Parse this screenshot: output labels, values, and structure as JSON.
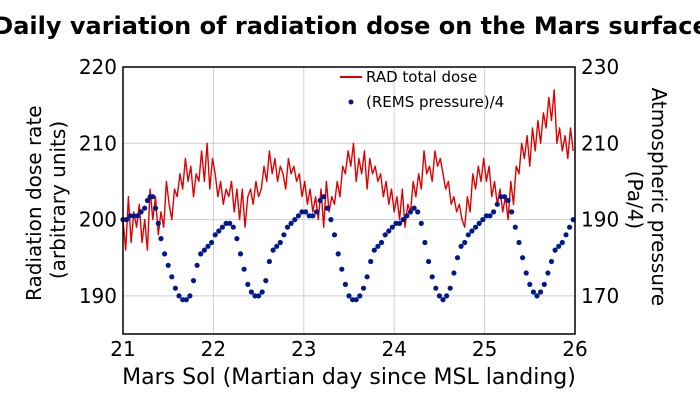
{
  "chart_data": {
    "type": "line",
    "title": "Daily variation of radiation dose on the Mars surface",
    "xlabel": "Mars Sol (Martian day since MSL landing)",
    "ylabel": "Radiation dose rate (arbitrary units)",
    "ylabel_lines": [
      "Radiation dose rate",
      "(arbitrary units)"
    ],
    "y2label": "Atmospheric pressure (Pa/4)",
    "y2label_lines": [
      "Atmospheric pressure",
      "(Pa/4)"
    ],
    "xlim": [
      21,
      26
    ],
    "ylim": [
      185,
      220
    ],
    "y2lim": [
      160,
      230
    ],
    "x_ticks": [
      "21",
      "22",
      "23",
      "24",
      "25",
      "26"
    ],
    "y_ticks": [
      "190",
      "200",
      "210",
      "220"
    ],
    "y2_ticks": [
      "170",
      "190",
      "210",
      "230"
    ],
    "grid": true,
    "legend": "top-right",
    "series": [
      {
        "name": "RAD total dose",
        "axis": "left",
        "style": "line",
        "color": "#e00000",
        "x": [
          21.0,
          21.03,
          21.06,
          21.09,
          21.12,
          21.15,
          21.18,
          21.21,
          21.24,
          21.27,
          21.3,
          21.33,
          21.36,
          21.39,
          21.42,
          21.45,
          21.48,
          21.51,
          21.54,
          21.57,
          21.6,
          21.63,
          21.66,
          21.69,
          21.72,
          21.75,
          21.78,
          21.81,
          21.84,
          21.87,
          21.9,
          21.93,
          21.96,
          21.99,
          22.02,
          22.05,
          22.08,
          22.11,
          22.14,
          22.17,
          22.2,
          22.23,
          22.26,
          22.29,
          22.32,
          22.35,
          22.38,
          22.41,
          22.44,
          22.47,
          22.5,
          22.53,
          22.56,
          22.59,
          22.62,
          22.65,
          22.68,
          22.71,
          22.74,
          22.77,
          22.8,
          22.83,
          22.86,
          22.89,
          22.92,
          22.95,
          22.98,
          23.01,
          23.04,
          23.07,
          23.1,
          23.13,
          23.16,
          23.19,
          23.22,
          23.25,
          23.28,
          23.31,
          23.34,
          23.37,
          23.4,
          23.43,
          23.46,
          23.49,
          23.52,
          23.55,
          23.58,
          23.61,
          23.64,
          23.67,
          23.7,
          23.73,
          23.76,
          23.79,
          23.82,
          23.85,
          23.88,
          23.91,
          23.94,
          23.97,
          24.0,
          24.03,
          24.06,
          24.09,
          24.12,
          24.15,
          24.18,
          24.21,
          24.24,
          24.27,
          24.3,
          24.33,
          24.36,
          24.39,
          24.42,
          24.45,
          24.48,
          24.51,
          24.54,
          24.57,
          24.6,
          24.63,
          24.66,
          24.69,
          24.72,
          24.75,
          24.78,
          24.81,
          24.84,
          24.87,
          24.9,
          24.93,
          24.96,
          24.99,
          25.02,
          25.05,
          25.08,
          25.11,
          25.14,
          25.17,
          25.2,
          25.23,
          25.26,
          25.29,
          25.32,
          25.35,
          25.38,
          25.41,
          25.44,
          25.47,
          25.5,
          25.53,
          25.56,
          25.59,
          25.62,
          25.65,
          25.68,
          25.71,
          25.74,
          25.77,
          25.8,
          25.83,
          25.86,
          25.89,
          25.92,
          25.95,
          25.98
        ],
        "y": [
          200,
          196,
          203,
          197,
          201,
          199,
          202,
          197,
          200,
          196,
          204,
          200,
          203,
          198,
          201,
          199,
          205,
          202,
          200,
          204,
          203,
          206,
          204,
          208,
          205,
          207,
          203,
          206,
          205,
          209,
          205,
          210,
          204,
          208,
          206,
          203,
          205,
          202,
          204,
          203,
          205,
          201,
          204,
          200,
          204,
          199,
          203,
          204,
          202,
          205,
          203,
          204,
          207,
          205,
          209,
          206,
          208,
          205,
          207,
          206,
          204,
          208,
          206,
          207,
          205,
          206,
          203,
          205,
          202,
          204,
          201,
          203,
          200,
          204,
          199,
          205,
          201,
          203,
          202,
          205,
          203,
          207,
          206,
          209,
          207,
          210,
          205,
          208,
          206,
          209,
          204,
          208,
          206,
          207,
          205,
          206,
          203,
          205,
          202,
          204,
          201,
          203,
          200,
          204,
          199,
          202,
          201,
          205,
          203,
          206,
          204,
          209,
          206,
          207,
          205,
          209,
          207,
          208,
          206,
          204,
          205,
          202,
          203,
          201,
          202,
          200,
          199,
          203,
          201,
          206,
          204,
          207,
          205,
          208,
          205,
          207,
          203,
          205,
          202,
          204,
          201,
          203,
          200,
          205,
          202,
          207,
          206,
          210,
          208,
          211,
          207,
          212,
          209,
          213,
          210,
          214,
          212,
          216,
          213,
          217,
          210,
          212,
          209,
          211,
          208,
          212,
          209
        ]
      },
      {
        "name": "(REMS pressure)/4",
        "axis": "right",
        "style": "dots",
        "color": "#001a8c",
        "x": [
          21.0,
          21.04,
          21.08,
          21.12,
          21.16,
          21.2,
          21.24,
          21.27,
          21.3,
          21.33,
          21.36,
          21.39,
          21.42,
          21.46,
          21.5,
          21.54,
          21.58,
          21.62,
          21.66,
          21.7,
          21.74,
          21.78,
          21.82,
          21.86,
          21.9,
          21.94,
          21.98,
          22.02,
          22.06,
          22.1,
          22.14,
          22.18,
          22.22,
          22.26,
          22.3,
          22.34,
          22.38,
          22.42,
          22.46,
          22.5,
          22.54,
          22.58,
          22.62,
          22.66,
          22.7,
          22.74,
          22.78,
          22.82,
          22.86,
          22.9,
          22.94,
          22.98,
          23.02,
          23.06,
          23.1,
          23.14,
          23.18,
          23.22,
          23.26,
          23.3,
          23.34,
          23.38,
          23.42,
          23.46,
          23.5,
          23.54,
          23.58,
          23.62,
          23.66,
          23.7,
          23.74,
          23.78,
          23.82,
          23.86,
          23.9,
          23.94,
          23.98,
          24.02,
          24.06,
          24.1,
          24.14,
          24.18,
          24.22,
          24.26,
          24.3,
          24.34,
          24.38,
          24.42,
          24.46,
          24.5,
          24.54,
          24.58,
          24.62,
          24.66,
          24.7,
          24.74,
          24.78,
          24.82,
          24.86,
          24.9,
          24.94,
          24.98,
          25.02,
          25.06,
          25.1,
          25.14,
          25.18,
          25.22,
          25.26,
          25.3,
          25.34,
          25.38,
          25.42,
          25.46,
          25.5,
          25.54,
          25.58,
          25.62,
          25.66,
          25.7,
          25.74,
          25.78,
          25.82,
          25.86,
          25.9,
          25.94,
          25.98
        ],
        "y": [
          190,
          190,
          191,
          191,
          191,
          192,
          193,
          195,
          196,
          196,
          193,
          189,
          185,
          181,
          178,
          175,
          172,
          170,
          169,
          169,
          170,
          174,
          178,
          181,
          182,
          183,
          184,
          186,
          187,
          188,
          189,
          189,
          188,
          185,
          181,
          177,
          173,
          171,
          170,
          170,
          171,
          174,
          179,
          182,
          183,
          184,
          186,
          188,
          189,
          190,
          191,
          192,
          192,
          191,
          191,
          192,
          195,
          196,
          193,
          190,
          186,
          181,
          177,
          173,
          170,
          169,
          169,
          170,
          172,
          175,
          179,
          182,
          183,
          184,
          186,
          187,
          188,
          189,
          189,
          190,
          191,
          192,
          193,
          192,
          189,
          184,
          179,
          175,
          172,
          170,
          169,
          170,
          172,
          176,
          180,
          183,
          184,
          186,
          187,
          188,
          189,
          190,
          191,
          191,
          192,
          194,
          196,
          196,
          195,
          192,
          188,
          184,
          180,
          176,
          173,
          171,
          170,
          171,
          173,
          176,
          179,
          182,
          183,
          184,
          186,
          188,
          190
        ]
      }
    ]
  }
}
